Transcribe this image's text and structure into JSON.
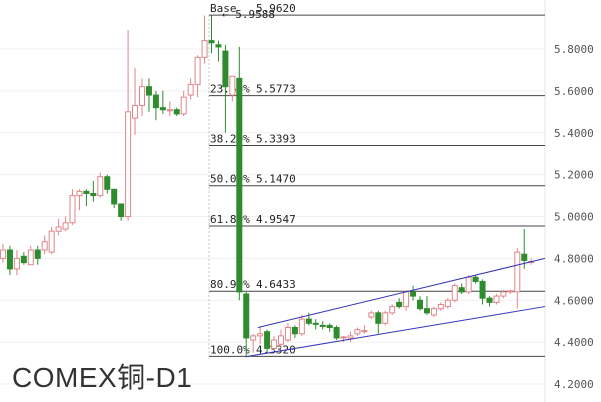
{
  "chart_data": {
    "type": "candlestick",
    "title": "COMEX铜-D1",
    "ylim": [
      4.2,
      6.0
    ],
    "y_ticks": [
      "5.8000",
      "5.6000",
      "5.4000",
      "5.2000",
      "5.0000",
      "4.8000",
      "4.6000",
      "4.4000",
      "4.2000"
    ],
    "y_tick_values": [
      5.8,
      5.6,
      5.4,
      5.2,
      5.0,
      4.8,
      4.6,
      4.4,
      4.2
    ],
    "grid": true,
    "colors": {
      "up": "#e0868a",
      "down": "#2e8b2e",
      "fib": "#444444",
      "channel": "#3333bb",
      "marker": "#e07030"
    },
    "marker_label": "5.9588",
    "fibonacci": [
      {
        "label": "Base",
        "value": "5.9620",
        "price": 5.962
      },
      {
        "label": "23.60%",
        "value": "5.5773",
        "price": 5.5773
      },
      {
        "label": "38.20%",
        "value": "5.3393",
        "price": 5.3393
      },
      {
        "label": "50.00%",
        "value": "5.1470",
        "price": 5.147
      },
      {
        "label": "61.80%",
        "value": "4.9547",
        "price": 4.9547
      },
      {
        "label": "80.90%",
        "value": "4.6433",
        "price": 4.6433
      },
      {
        "label": "100.0%",
        "value": "4.3320",
        "price": 4.332
      }
    ],
    "channel": {
      "upper": [
        4.47,
        4.8
      ],
      "lower": [
        4.33,
        4.57
      ]
    },
    "ohlc": [
      [
        4.8,
        4.87,
        4.78,
        4.84
      ],
      [
        4.84,
        4.86,
        4.72,
        4.75
      ],
      [
        4.75,
        4.84,
        4.72,
        4.8
      ],
      [
        4.81,
        4.83,
        4.77,
        4.78
      ],
      [
        4.77,
        4.86,
        4.77,
        4.84
      ],
      [
        4.84,
        4.86,
        4.77,
        4.8
      ],
      [
        4.84,
        4.91,
        4.82,
        4.88
      ],
      [
        4.83,
        4.95,
        4.82,
        4.93
      ],
      [
        4.93,
        4.99,
        4.91,
        4.95
      ],
      [
        4.94,
        5.0,
        4.93,
        4.97
      ],
      [
        4.97,
        5.13,
        4.96,
        5.1
      ],
      [
        5.1,
        5.13,
        5.03,
        5.12
      ],
      [
        5.12,
        5.13,
        5.05,
        5.11
      ],
      [
        5.11,
        5.17,
        5.07,
        5.1
      ],
      [
        5.1,
        5.21,
        5.09,
        5.19
      ],
      [
        5.19,
        5.2,
        5.11,
        5.13
      ],
      [
        5.13,
        5.13,
        5.04,
        5.06
      ],
      [
        5.06,
        5.06,
        4.98,
        5.0
      ],
      [
        5.0,
        5.89,
        4.98,
        5.5
      ],
      [
        5.47,
        5.71,
        5.39,
        5.53
      ],
      [
        5.53,
        5.66,
        5.48,
        5.62
      ],
      [
        5.62,
        5.66,
        5.5,
        5.58
      ],
      [
        5.58,
        5.6,
        5.46,
        5.52
      ],
      [
        5.52,
        5.6,
        5.49,
        5.51
      ],
      [
        5.505,
        5.55,
        5.48,
        5.51
      ],
      [
        5.51,
        5.52,
        5.48,
        5.49
      ],
      [
        5.49,
        5.6,
        5.48,
        5.57
      ],
      [
        5.58,
        5.66,
        5.56,
        5.63
      ],
      [
        5.63,
        5.77,
        5.57,
        5.76
      ],
      [
        5.76,
        5.96,
        5.73,
        5.84
      ],
      [
        5.84,
        5.96,
        5.78,
        5.83
      ],
      [
        5.82,
        5.84,
        5.74,
        5.81
      ],
      [
        5.79,
        5.82,
        5.4,
        5.62
      ],
      [
        5.58,
        5.67,
        5.55,
        5.67
      ],
      [
        5.66,
        5.81,
        4.6,
        4.64
      ],
      [
        4.63,
        4.64,
        4.33,
        4.42
      ],
      [
        4.41,
        4.44,
        4.35,
        4.43
      ],
      [
        4.43,
        4.47,
        4.39,
        4.44
      ],
      [
        4.45,
        4.46,
        4.35,
        4.37
      ],
      [
        4.37,
        4.43,
        4.36,
        4.41
      ],
      [
        4.39,
        4.46,
        4.37,
        4.43
      ],
      [
        4.41,
        4.49,
        4.4,
        4.47
      ],
      [
        4.47,
        4.48,
        4.42,
        4.44
      ],
      [
        4.44,
        4.53,
        4.43,
        4.51
      ],
      [
        4.51,
        4.54,
        4.48,
        4.49
      ],
      [
        4.49,
        4.51,
        4.46,
        4.485
      ],
      [
        4.48,
        4.5,
        4.46,
        4.475
      ],
      [
        4.48,
        4.49,
        4.45,
        4.47
      ],
      [
        4.47,
        4.48,
        4.41,
        4.42
      ],
      [
        4.42,
        4.43,
        4.4,
        4.425
      ],
      [
        4.42,
        4.45,
        4.4,
        4.43
      ],
      [
        4.44,
        4.47,
        4.43,
        4.46
      ],
      [
        4.45,
        4.48,
        4.44,
        4.455
      ],
      [
        4.52,
        4.55,
        4.51,
        4.54
      ],
      [
        4.54,
        4.55,
        4.44,
        4.49
      ],
      [
        4.49,
        4.55,
        4.48,
        4.54
      ],
      [
        4.54,
        4.58,
        4.53,
        4.57
      ],
      [
        4.59,
        4.61,
        4.56,
        4.57
      ],
      [
        4.57,
        4.65,
        4.55,
        4.64
      ],
      [
        4.64,
        4.67,
        4.6,
        4.62
      ],
      [
        4.6,
        4.62,
        4.55,
        4.56
      ],
      [
        4.56,
        4.62,
        4.53,
        4.54
      ],
      [
        4.53,
        4.57,
        4.52,
        4.56
      ],
      [
        4.56,
        4.59,
        4.55,
        4.58
      ],
      [
        4.57,
        4.61,
        4.56,
        4.6
      ],
      [
        4.6,
        4.68,
        4.59,
        4.67
      ],
      [
        4.66,
        4.68,
        4.63,
        4.64
      ],
      [
        4.64,
        4.72,
        4.63,
        4.71
      ],
      [
        4.71,
        4.72,
        4.68,
        4.69
      ],
      [
        4.69,
        4.7,
        4.58,
        4.61
      ],
      [
        4.61,
        4.62,
        4.57,
        4.59
      ],
      [
        4.59,
        4.63,
        4.58,
        4.62
      ],
      [
        4.62,
        4.65,
        4.61,
        4.64
      ],
      [
        4.64,
        4.65,
        4.63,
        4.645
      ],
      [
        4.64,
        4.85,
        4.56,
        4.83
      ],
      [
        4.82,
        4.94,
        4.75,
        4.79
      ],
      [
        4.78,
        4.8,
        4.77,
        4.785
      ]
    ]
  }
}
